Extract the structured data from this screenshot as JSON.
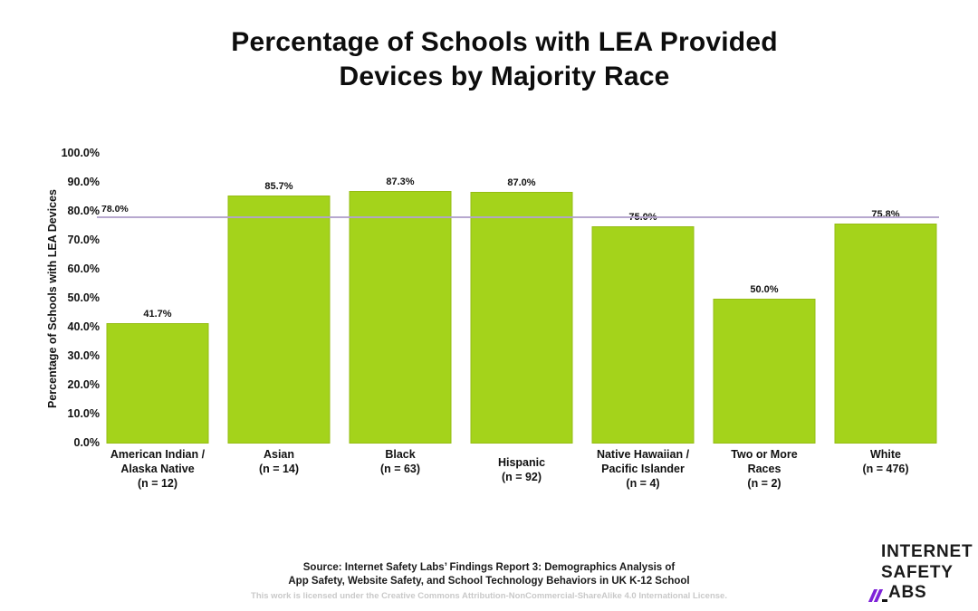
{
  "title": {
    "line1": "Percentage of Schools with LEA Provided",
    "line2": "Devices by Majority Race"
  },
  "chart_data": {
    "type": "bar",
    "title": "Percentage of Schools with LEA Provided Devices by Majority Race",
    "ylabel": "Percentage of Schools with LEA Devices",
    "xlabel": "",
    "ylim": [
      0,
      100
    ],
    "grid": false,
    "legend": null,
    "y_tick_labels": [
      "0.0%",
      "10.0%",
      "20.0%",
      "30.0%",
      "40.0%",
      "50.0%",
      "60.0%",
      "70.0%",
      "80.0%",
      "90.0%",
      "100.0%"
    ],
    "categories": [
      "American Indian / Alaska Native (n = 12)",
      "Asian (n = 14)",
      "Black (n = 63)",
      "Hispanic (n = 92)",
      "Native Hawaiian / Pacific Islander (n = 4)",
      "Two or More Races (n = 2)",
      "White (n = 476)"
    ],
    "category_lines": [
      [
        "American Indian /",
        "Alaska Native",
        "(n = 12)"
      ],
      [
        "Asian",
        "(n = 14)"
      ],
      [
        "Black",
        "(n = 63)"
      ],
      [
        "Hispanic",
        "(n = 92)"
      ],
      [
        "Native Hawaiian /",
        "Pacific Islander",
        "(n = 4)"
      ],
      [
        "Two or More",
        "Races",
        "(n = 2)"
      ],
      [
        "White",
        "(n = 476)"
      ]
    ],
    "values": [
      41.7,
      85.7,
      87.3,
      87.0,
      75.0,
      50.0,
      75.8
    ],
    "value_labels": [
      "41.7%",
      "85.7%",
      "87.3%",
      "87.0%",
      "75.0%",
      "50.0%",
      "75.8%"
    ],
    "bar_color": "#a4d31b",
    "reference_line": {
      "value": 78.0,
      "label": "78.0%",
      "color": "#b3a3cc"
    }
  },
  "footer": {
    "source_line1": "Source: Internet Safety Labs’ Findings Report 3: Demographics Analysis of",
    "source_line2": "App Safety, Website Safety, and School Technology Behaviors in UK K-12 School",
    "license": "This work is licensed under the Creative Commons Attribution-NonCommercial-ShareAlike 4.0 International License."
  },
  "logo": {
    "line1": "INTERNET",
    "line2": "SAFETY",
    "labs_suffix": "ABS",
    "slash_color": "#7e22d8"
  }
}
